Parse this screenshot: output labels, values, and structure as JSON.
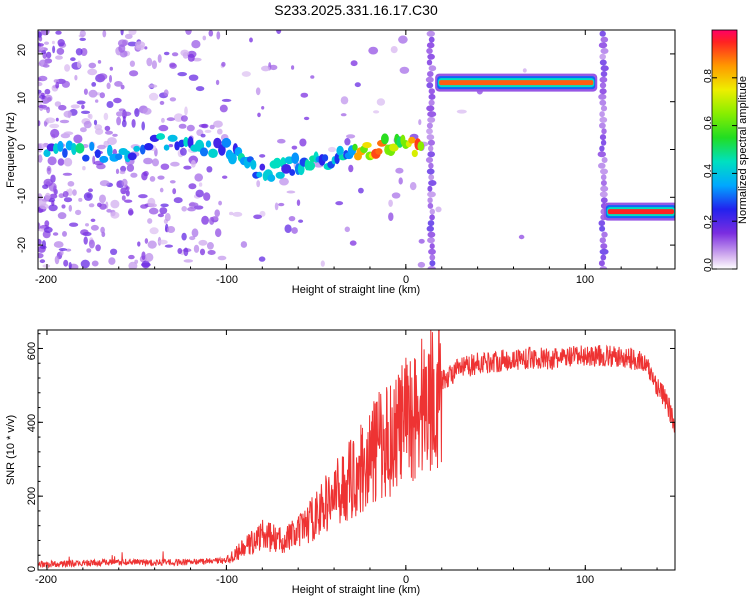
{
  "figure_title": "S233.2025.331.16.17.C30",
  "chart_data": [
    {
      "type": "heatmap",
      "title": "S233.2025.331.16.17.C30",
      "xlabel": "Height of straight line (km)",
      "ylabel": "Frequency (Hz)",
      "xlim": [
        -205,
        150
      ],
      "ylim": [
        -25,
        25
      ],
      "x_ticks": [
        -200,
        -100,
        0,
        100
      ],
      "x_tick_labels": [
        "-200",
        "-100",
        "0",
        "100"
      ],
      "y_ticks": [
        20,
        10,
        0,
        -10,
        -20
      ],
      "y_tick_labels": [
        "20",
        "10",
        "0",
        "-10",
        "-20"
      ],
      "colorbar": {
        "label": "Normalized spectral amplitude",
        "range": [
          0,
          1
        ],
        "ticks": [
          0.0,
          0.2,
          0.4,
          0.6,
          0.8
        ],
        "tick_labels": [
          "0.0",
          "0.2",
          "0.4",
          "0.6",
          "0.8"
        ],
        "colormap": "rainbow (white-purple-blue-cyan-green-yellow-red)"
      },
      "features": [
        {
          "name": "noise",
          "x_range": [
            -205,
            -100
          ],
          "y_range": [
            -25,
            25
          ],
          "amplitude": 0.1
        },
        {
          "name": "wandering-trace",
          "points": [
            [
              -200,
              -1
            ],
            [
              -185,
              0
            ],
            [
              -165,
              -1
            ],
            [
              -150,
              0
            ],
            [
              -130,
              2
            ],
            [
              -115,
              1
            ],
            [
              -100,
              0
            ],
            [
              -90,
              -2
            ],
            [
              -80,
              -5
            ],
            [
              -70,
              -4
            ],
            [
              -60,
              -3
            ],
            [
              -50,
              -3
            ],
            [
              -40,
              -2
            ],
            [
              -30,
              -1
            ],
            [
              -20,
              0
            ],
            [
              -10,
              1
            ],
            [
              0,
              1
            ],
            [
              10,
              0
            ]
          ],
          "amplitude": 0.5
        },
        {
          "name": "tone-14hz",
          "x_range": [
            18,
            105
          ],
          "freq": 14,
          "amplitude": 0.9
        },
        {
          "name": "tone-neg13hz",
          "x_range": [
            112,
            150
          ],
          "freq": -13,
          "amplitude": 0.95
        },
        {
          "name": "vertical-streak",
          "x": 14
        },
        {
          "name": "vertical-streak",
          "x": 110
        }
      ]
    },
    {
      "type": "line",
      "xlabel": "Height of straight line (km)",
      "ylabel": "SNR (10 * v/v)",
      "xlim": [
        -205,
        150
      ],
      "ylim": [
        0,
        650
      ],
      "x_ticks": [
        -200,
        -100,
        0,
        100
      ],
      "x_tick_labels": [
        "-200",
        "-100",
        "0",
        "100"
      ],
      "y_ticks": [
        0,
        200,
        400,
        600
      ],
      "y_tick_labels": [
        "0",
        "200",
        "400",
        "600"
      ],
      "series": [
        {
          "name": "SNR",
          "color": "#ee3333",
          "x": [
            -205,
            -180,
            -160,
            -140,
            -120,
            -100,
            -90,
            -80,
            -70,
            -60,
            -50,
            -40,
            -30,
            -20,
            -15,
            -10,
            -5,
            0,
            5,
            10,
            15,
            20,
            25,
            30,
            40,
            50,
            60,
            70,
            80,
            90,
            100,
            110,
            120,
            130,
            135,
            140,
            145,
            150
          ],
          "values": [
            15,
            18,
            22,
            20,
            22,
            25,
            60,
            95,
            80,
            100,
            150,
            200,
            250,
            300,
            340,
            350,
            380,
            400,
            430,
            450,
            480,
            510,
            530,
            545,
            560,
            565,
            570,
            575,
            570,
            575,
            580,
            580,
            575,
            570,
            545,
            500,
            460,
            390
          ]
        }
      ]
    }
  ]
}
